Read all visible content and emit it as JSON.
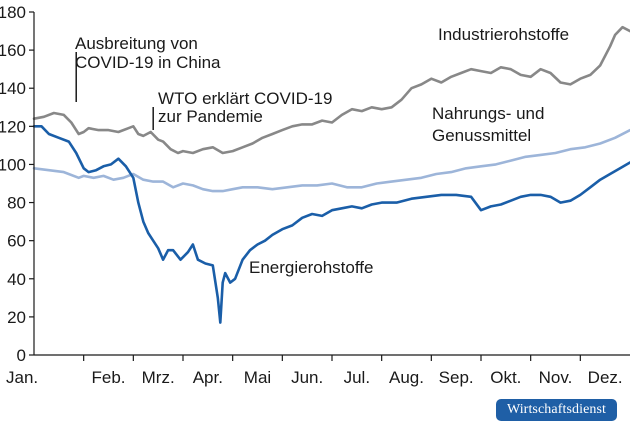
{
  "chart_data": {
    "type": "line",
    "title": "",
    "xlabel": "",
    "ylabel": "",
    "ylim": [
      0,
      180
    ],
    "yticks": [
      0,
      20,
      40,
      60,
      80,
      100,
      120,
      140,
      160,
      180
    ],
    "grid": false,
    "x_unit": "months since start of year",
    "xlim": [
      0,
      12
    ],
    "categories": [
      "Jan.",
      "Feb.",
      "Mrz.",
      "Apr.",
      "Mai",
      "Jun.",
      "Jul.",
      "Aug.",
      "Sep.",
      "Okt.",
      "Nov.",
      "Dez."
    ],
    "series": [
      {
        "name": "Industrierohstoffe",
        "color": "#888888",
        "x": [
          0,
          0.2,
          0.4,
          0.6,
          0.75,
          0.9,
          1.0,
          1.1,
          1.3,
          1.5,
          1.7,
          1.9,
          2.0,
          2.1,
          2.2,
          2.35,
          2.5,
          2.6,
          2.75,
          2.9,
          3.0,
          3.2,
          3.4,
          3.6,
          3.8,
          4.0,
          4.2,
          4.4,
          4.6,
          4.8,
          5.0,
          5.2,
          5.4,
          5.6,
          5.8,
          6.0,
          6.2,
          6.4,
          6.6,
          6.8,
          7.0,
          7.2,
          7.4,
          7.6,
          7.8,
          8.0,
          8.2,
          8.4,
          8.6,
          8.8,
          9.0,
          9.2,
          9.4,
          9.6,
          9.8,
          10.0,
          10.2,
          10.4,
          10.6,
          10.8,
          11.0,
          11.2,
          11.4,
          11.6,
          11.7,
          11.85,
          12.0
        ],
        "values": [
          124,
          125,
          127,
          126,
          122,
          116,
          117,
          119,
          118,
          118,
          117,
          119,
          120,
          116,
          115,
          117,
          113,
          112,
          108,
          106,
          107,
          106,
          108,
          109,
          106,
          107,
          109,
          111,
          114,
          116,
          118,
          120,
          121,
          121,
          123,
          122,
          126,
          129,
          128,
          130,
          129,
          130,
          134,
          140,
          142,
          145,
          143,
          146,
          148,
          150,
          149,
          148,
          151,
          150,
          147,
          146,
          150,
          148,
          143,
          142,
          145,
          147,
          152,
          162,
          168,
          172,
          170
        ]
      },
      {
        "name": "Nahrungs- und Genussmittel",
        "color": "#9db5d9",
        "x": [
          0,
          0.3,
          0.6,
          0.9,
          1.0,
          1.2,
          1.4,
          1.6,
          1.8,
          2.0,
          2.2,
          2.4,
          2.6,
          2.8,
          3.0,
          3.2,
          3.4,
          3.6,
          3.8,
          4.0,
          4.2,
          4.5,
          4.8,
          5.1,
          5.4,
          5.7,
          6.0,
          6.3,
          6.6,
          6.9,
          7.2,
          7.5,
          7.8,
          8.1,
          8.4,
          8.7,
          9.0,
          9.3,
          9.6,
          9.9,
          10.2,
          10.5,
          10.8,
          11.1,
          11.4,
          11.7,
          12.0
        ],
        "values": [
          98,
          97,
          96,
          93,
          94,
          93,
          94,
          92,
          93,
          95,
          92,
          91,
          91,
          88,
          90,
          89,
          87,
          86,
          86,
          87,
          88,
          88,
          87,
          88,
          89,
          89,
          90,
          88,
          88,
          90,
          91,
          92,
          93,
          95,
          96,
          98,
          99,
          100,
          102,
          104,
          105,
          106,
          108,
          109,
          111,
          114,
          118
        ]
      },
      {
        "name": "Energierohstoffe",
        "color": "#1a5ea8",
        "x": [
          0,
          0.15,
          0.3,
          0.5,
          0.7,
          0.85,
          1.0,
          1.1,
          1.25,
          1.4,
          1.55,
          1.7,
          1.85,
          2.0,
          2.1,
          2.2,
          2.3,
          2.4,
          2.5,
          2.6,
          2.7,
          2.8,
          2.95,
          3.1,
          3.2,
          3.3,
          3.45,
          3.6,
          3.7,
          3.75,
          3.8,
          3.85,
          3.95,
          4.05,
          4.2,
          4.35,
          4.5,
          4.65,
          4.8,
          5.0,
          5.2,
          5.4,
          5.6,
          5.8,
          6.0,
          6.2,
          6.4,
          6.6,
          6.8,
          7.0,
          7.3,
          7.6,
          7.9,
          8.2,
          8.5,
          8.8,
          9.0,
          9.2,
          9.4,
          9.6,
          9.8,
          10.0,
          10.2,
          10.4,
          10.6,
          10.8,
          11.0,
          11.2,
          11.4,
          11.6,
          11.8,
          12.0
        ],
        "values": [
          120,
          120,
          116,
          114,
          112,
          106,
          98,
          96,
          97,
          99,
          100,
          103,
          99,
          93,
          80,
          70,
          64,
          60,
          56,
          50,
          55,
          55,
          50,
          54,
          58,
          50,
          48,
          47,
          30,
          17,
          38,
          43,
          38,
          40,
          50,
          55,
          58,
          60,
          63,
          66,
          68,
          72,
          74,
          73,
          76,
          77,
          78,
          77,
          79,
          80,
          80,
          82,
          83,
          84,
          84,
          83,
          76,
          78,
          79,
          81,
          83,
          84,
          84,
          83,
          80,
          81,
          84,
          88,
          92,
          95,
          98,
          101
        ]
      }
    ],
    "annotations": [
      {
        "lines": [
          "Ausbreitung von",
          "COVID-19 in China"
        ],
        "marker_x": 0.85
      },
      {
        "lines": [
          "WTO erklärt COVID-19",
          "zur Pandemie"
        ],
        "marker_x": 2.4
      },
      {
        "lines": [
          "Industrierohstoffe"
        ]
      },
      {
        "lines": [
          "Nahrungs- und",
          "Genussmittel"
        ]
      },
      {
        "lines": [
          "Energierohstoffe"
        ]
      }
    ]
  },
  "source_badge": "Wirtschaftsdienst"
}
